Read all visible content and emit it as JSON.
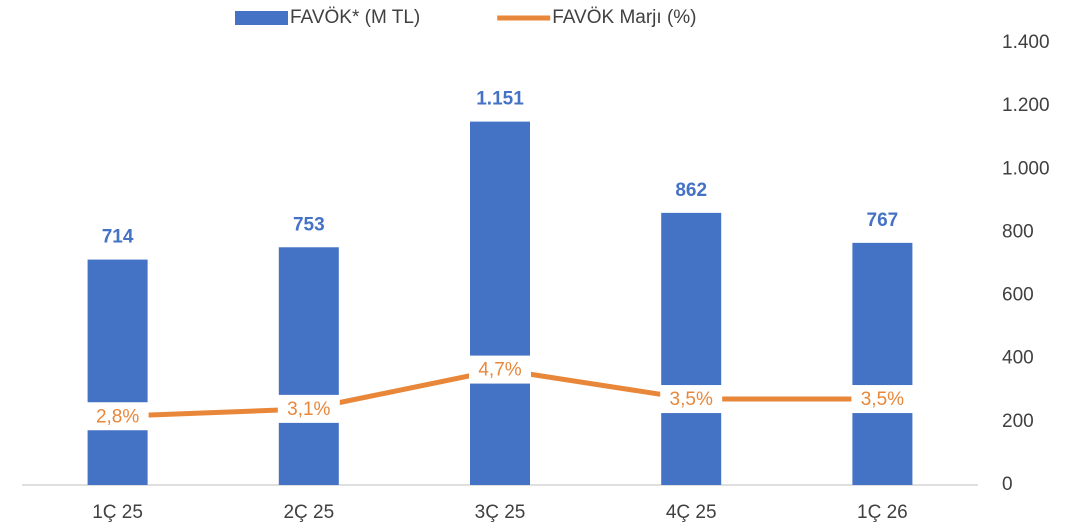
{
  "chart_data": {
    "type": "bar_line",
    "categories": [
      "1Ç 25",
      "2Ç 25",
      "3Ç 25",
      "4Ç 25",
      "1Ç 26"
    ],
    "series": [
      {
        "name": "FAVÖK* (M TL)",
        "type": "bar",
        "color": "#4472c4",
        "axis": "y",
        "values": [
          714,
          753,
          1151,
          862,
          767
        ],
        "value_labels": [
          "714",
          "753",
          "1.151",
          "862",
          "767"
        ]
      },
      {
        "name": "FAVÖK Marjı (%)",
        "type": "line",
        "color": "#e8873a",
        "axis": "y2",
        "values": [
          2.8,
          3.1,
          4.7,
          3.5,
          3.5
        ],
        "value_labels": [
          "2,8%",
          "3,1%",
          "4,7%",
          "3,5%",
          "3,5%"
        ]
      }
    ],
    "ylim": [
      0,
      1400
    ],
    "yticks": [
      0,
      200,
      400,
      600,
      800,
      {
        "value": 1000,
        "label": "1.000"
      },
      {
        "value": 1200,
        "label": "1.200"
      },
      {
        "value": 1400,
        "label": "1.400"
      }
    ],
    "y2lim": [
      0,
      18
    ],
    "grid": false,
    "legend": "top"
  }
}
